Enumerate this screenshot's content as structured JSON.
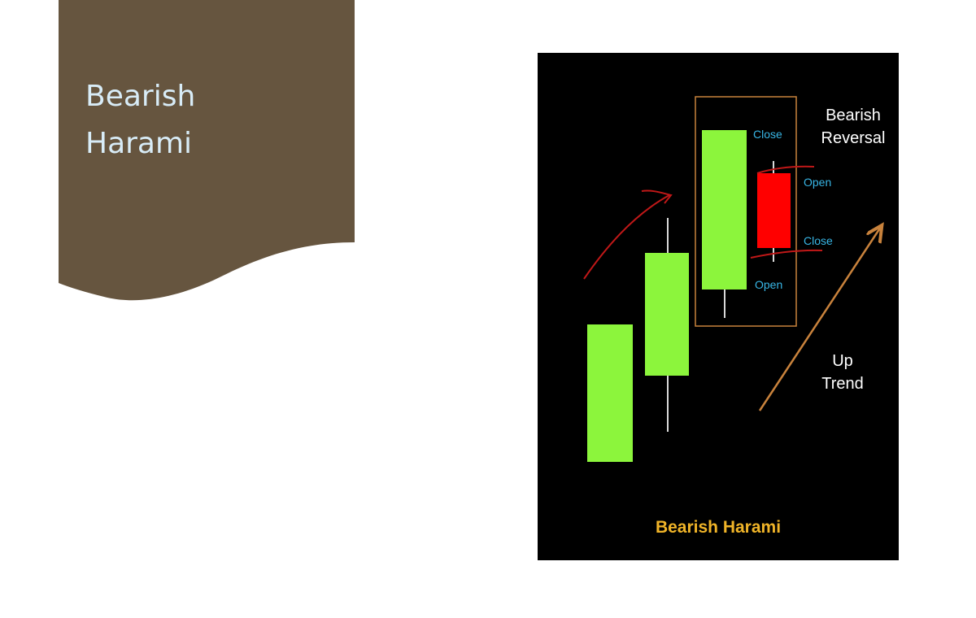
{
  "slide": {
    "title_line1": "Bearish",
    "title_line2": "Harami",
    "banner_color": "#66553f"
  },
  "figure": {
    "caption": "Bearish Harami",
    "reversal_line1": "Bearish",
    "reversal_line2": "Reversal",
    "trend_line1": "Up",
    "trend_line2": "Trend",
    "labels": {
      "big_close": "Close",
      "big_open": "Open",
      "small_open": "Open",
      "small_close": "Close"
    },
    "colors": {
      "background": "#000000",
      "bullish": "#8cf53c",
      "bearish": "#ff0000",
      "highlight_box": "#c8823c",
      "trend_arrow": "#c8823c",
      "annotation": "#c01818",
      "caption": "#f0b428",
      "price_label": "#38b6e6"
    }
  }
}
